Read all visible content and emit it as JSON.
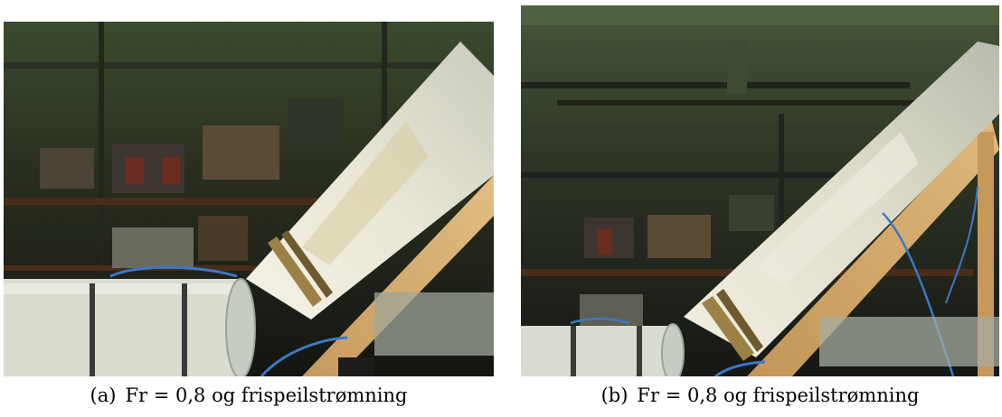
{
  "figure": {
    "panels": [
      {
        "label": "(a)",
        "caption": "Fr = 0,8 og frispeilstrømning"
      },
      {
        "label": "(b)",
        "caption": "Fr = 0,8 og frispeilstrømning"
      }
    ]
  }
}
